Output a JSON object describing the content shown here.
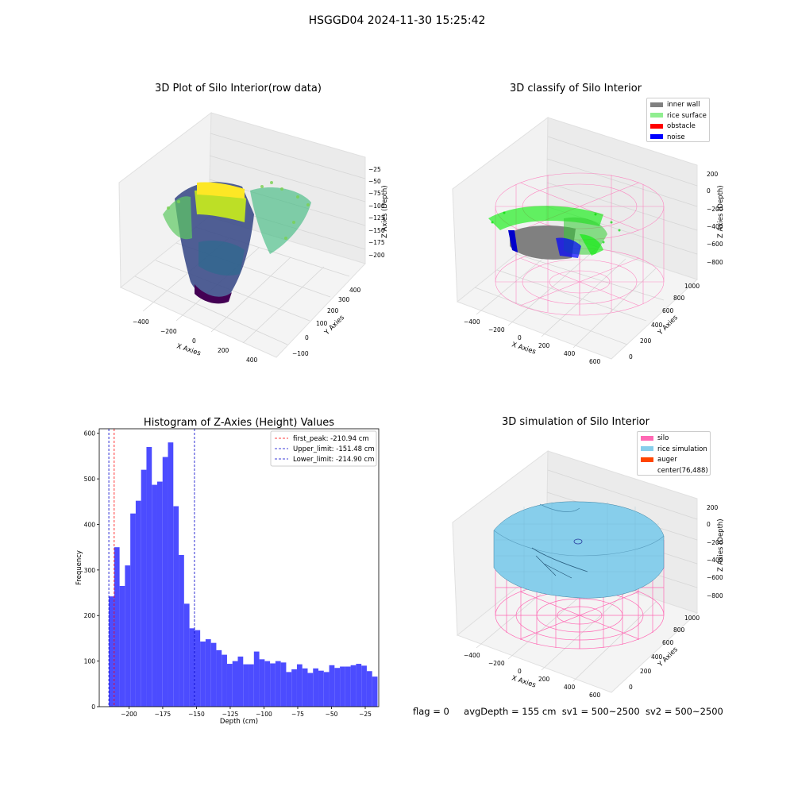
{
  "figure": {
    "suptitle": "HSGGD04 2024-11-30 15:25:42"
  },
  "panels": {
    "raw": {
      "title": "3D Plot of Silo Interior(row data)",
      "xlabel": "X Axies",
      "ylabel": "Y Axies",
      "zlabel": "Z Axies (Depth)",
      "xticks": [
        "−400",
        "−200",
        "0",
        "200",
        "400"
      ],
      "yticks": [
        "−100",
        "0",
        "100",
        "200",
        "300",
        "400"
      ],
      "zticks": [
        "−25",
        "−50",
        "−75",
        "−100",
        "−125",
        "−150",
        "−175",
        "−200"
      ]
    },
    "classify": {
      "title": "3D classify of Silo Interior",
      "xlabel": "X Axies",
      "ylabel": "Y Axies",
      "zlabel": "Z Axies (Depth)",
      "xticks": [
        "−400",
        "−200",
        "0",
        "200",
        "400",
        "600"
      ],
      "yticks": [
        "0",
        "200",
        "400",
        "600",
        "800",
        "1000"
      ],
      "zticks": [
        "200",
        "0",
        "−200",
        "−400",
        "−600",
        "−800"
      ],
      "legend": [
        {
          "label": "inner wall",
          "color": "#808080"
        },
        {
          "label": "rice surface",
          "color": "#90ee90"
        },
        {
          "label": "obstacle",
          "color": "#ff0000"
        },
        {
          "label": "noise",
          "color": "#0000ff"
        }
      ]
    },
    "simulation": {
      "title": "3D simulation of Silo Interior",
      "xlabel": "X Axies",
      "ylabel": "Y Axies",
      "zlabel": "Z Axies (Depth)",
      "xticks": [
        "−400",
        "−200",
        "0",
        "200",
        "400",
        "600"
      ],
      "yticks": [
        "0",
        "200",
        "400",
        "600",
        "800",
        "1000"
      ],
      "zticks": [
        "200",
        "0",
        "−200",
        "−400",
        "−600",
        "−800"
      ],
      "legend": [
        {
          "label": "silo",
          "color": "#ff69b4"
        },
        {
          "label": "rice simulation",
          "color": "#87ceeb"
        },
        {
          "label": "auger",
          "color": "#ff4500"
        },
        {
          "label": "center(76,488)",
          "color": ""
        }
      ]
    }
  },
  "chart_data": {
    "type": "bar",
    "title": "Histogram of Z-Axies (Height) Values",
    "xlabel": "Depth (cm)",
    "ylabel": "Frequency",
    "xlim": [
      -222,
      -15
    ],
    "ylim": [
      0,
      610
    ],
    "bar_color": "#4c4cff",
    "bin_start": -214.9,
    "bin_width": 3.98,
    "values": [
      242,
      350,
      265,
      310,
      424,
      452,
      520,
      570,
      487,
      494,
      548,
      580,
      440,
      333,
      226,
      172,
      168,
      143,
      148,
      140,
      124,
      114,
      94,
      100,
      110,
      93,
      93,
      121,
      104,
      100,
      95,
      100,
      97,
      76,
      82,
      93,
      84,
      74,
      84,
      79,
      76,
      91,
      85,
      88,
      88,
      91,
      94,
      90,
      78,
      66
    ],
    "xticks": [
      -200,
      -175,
      -150,
      -125,
      -100,
      -75,
      -50,
      -25
    ],
    "yticks": [
      0,
      100,
      200,
      300,
      400,
      500,
      600
    ],
    "vlines": [
      {
        "label": "first_peak: -210.94 cm",
        "x": -210.94,
        "color": "#ff0000"
      },
      {
        "label": "Upper_limit: -151.48 cm",
        "x": -151.48,
        "color": "#0000cc"
      },
      {
        "label": "Lower_limit: -214.90 cm",
        "x": -214.9,
        "color": "#0000cc"
      }
    ]
  },
  "footer": {
    "flag": "flag = 0",
    "avg_depth": "avgDepth = 155 cm",
    "sv1": "sv1 = 500~2500",
    "sv2": "sv2 = 500~2500"
  }
}
